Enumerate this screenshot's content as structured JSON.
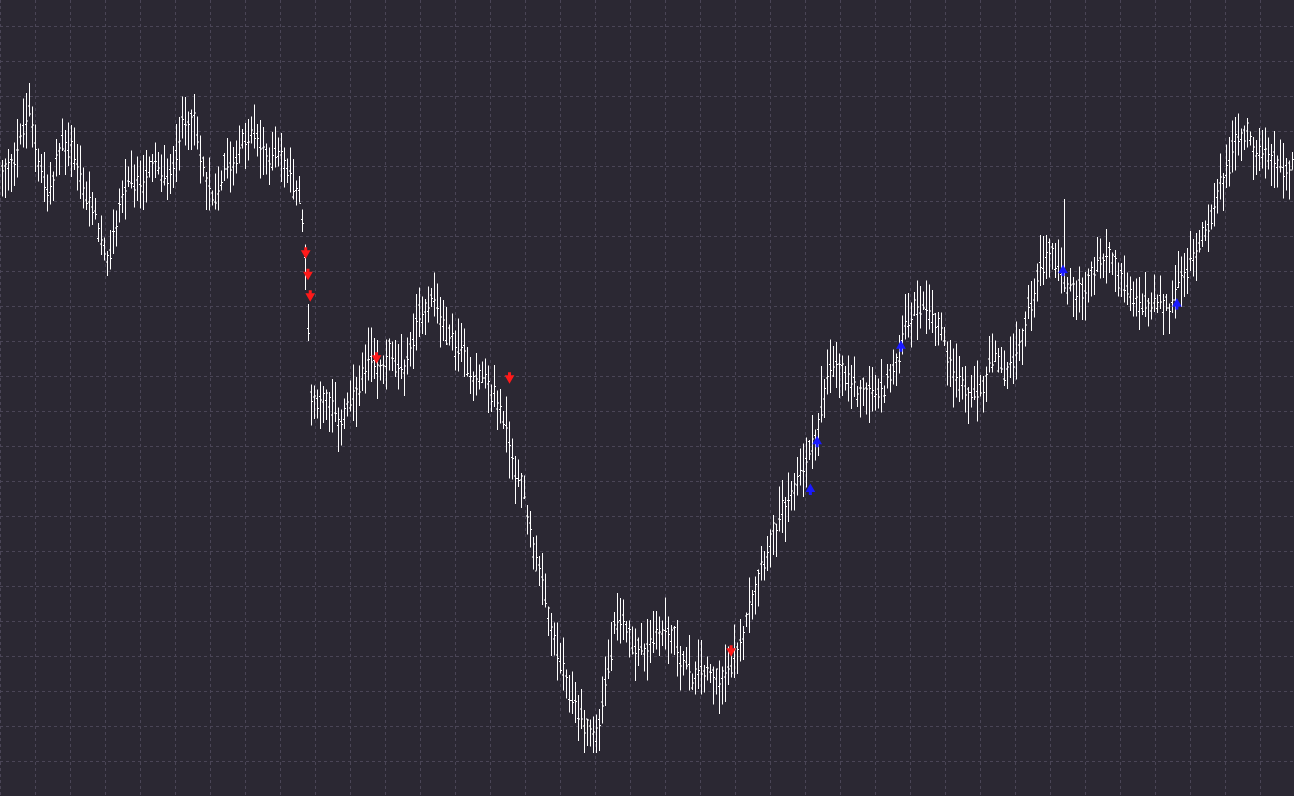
{
  "chart_data": {
    "type": "ohlc",
    "title": "",
    "xlabel": "",
    "ylabel": "",
    "grid": true,
    "background_color": "#2b2833",
    "grid_color": "#4a4556",
    "bar_color": "#ffffff",
    "sell_signal_color": "#ff1a1a",
    "buy_signal_color": "#1a1aff",
    "x_range": [
      0,
      400
    ],
    "y_range": [
      0,
      100
    ],
    "price_path": [
      [
        0,
        77.5
      ],
      [
        4,
        80
      ],
      [
        9,
        86
      ],
      [
        12,
        80
      ],
      [
        15,
        75
      ],
      [
        19,
        82
      ],
      [
        22,
        81.5
      ],
      [
        26,
        76
      ],
      [
        30,
        72
      ],
      [
        33,
        66
      ],
      [
        36,
        73
      ],
      [
        39,
        77
      ],
      [
        42,
        76
      ],
      [
        45,
        78
      ],
      [
        49,
        79
      ],
      [
        52,
        77
      ],
      [
        56,
        84
      ],
      [
        59,
        86
      ],
      [
        62,
        80
      ],
      [
        66,
        74
      ],
      [
        69,
        79
      ],
      [
        72,
        80
      ],
      [
        75,
        82
      ],
      [
        79,
        83
      ],
      [
        82,
        80
      ],
      [
        86,
        81
      ],
      [
        89,
        78
      ],
      [
        92,
        76
      ],
      [
        94,
        71
      ],
      [
        96,
        50
      ],
      [
        99,
        50
      ],
      [
        102,
        49
      ],
      [
        105,
        47
      ],
      [
        108,
        49
      ],
      [
        111,
        51
      ],
      [
        114,
        55
      ],
      [
        117,
        53
      ],
      [
        120,
        56
      ],
      [
        123,
        53
      ],
      [
        126,
        55
      ],
      [
        130,
        61
      ],
      [
        134,
        63
      ],
      [
        137,
        59
      ],
      [
        140,
        57
      ],
      [
        143,
        56
      ],
      [
        146,
        53
      ],
      [
        150,
        52
      ],
      [
        153,
        50
      ],
      [
        156,
        47
      ],
      [
        159,
        41
      ],
      [
        162,
        38
      ],
      [
        165,
        31
      ],
      [
        168,
        25
      ],
      [
        172,
        18
      ],
      [
        175,
        14
      ],
      [
        178,
        11
      ],
      [
        181,
        9
      ],
      [
        184,
        7
      ],
      [
        187,
        14
      ],
      [
        190,
        21
      ],
      [
        193,
        22
      ],
      [
        196,
        19
      ],
      [
        199,
        18
      ],
      [
        202,
        20
      ],
      [
        205,
        21
      ],
      [
        208,
        20
      ],
      [
        211,
        17
      ],
      [
        214,
        15
      ],
      [
        217,
        16
      ],
      [
        220,
        15
      ],
      [
        223,
        15
      ],
      [
        226,
        16
      ],
      [
        229,
        20
      ],
      [
        232,
        25
      ],
      [
        235,
        29
      ],
      [
        238,
        32
      ],
      [
        241,
        35
      ],
      [
        244,
        37
      ],
      [
        247,
        41
      ],
      [
        250,
        43
      ],
      [
        253,
        47
      ],
      [
        256,
        53
      ],
      [
        259,
        54
      ],
      [
        262,
        52
      ],
      [
        265,
        51
      ],
      [
        268,
        51
      ],
      [
        271,
        50
      ],
      [
        274,
        52
      ],
      [
        277,
        54
      ],
      [
        280,
        60
      ],
      [
        283,
        61
      ],
      [
        286,
        62
      ],
      [
        289,
        60
      ],
      [
        292,
        57
      ],
      [
        295,
        53
      ],
      [
        298,
        51
      ],
      [
        301,
        50
      ],
      [
        304,
        52
      ],
      [
        307,
        55
      ],
      [
        310,
        53
      ],
      [
        313,
        54
      ],
      [
        316,
        58
      ],
      [
        319,
        63
      ],
      [
        322,
        67
      ],
      [
        325,
        69
      ],
      [
        328,
        65
      ],
      [
        331,
        64
      ],
      [
        334,
        63
      ],
      [
        337,
        65
      ],
      [
        340,
        67
      ],
      [
        343,
        68
      ],
      [
        346,
        65
      ],
      [
        349,
        63
      ],
      [
        352,
        62
      ],
      [
        355,
        61
      ],
      [
        358,
        62
      ],
      [
        361,
        61
      ],
      [
        364,
        64
      ],
      [
        367,
        66
      ],
      [
        370,
        69
      ],
      [
        373,
        72
      ],
      [
        376,
        75
      ],
      [
        379,
        79
      ],
      [
        382,
        82
      ],
      [
        385,
        84
      ],
      [
        388,
        81
      ],
      [
        391,
        80
      ],
      [
        394,
        80
      ],
      [
        397,
        79
      ],
      [
        400,
        79
      ]
    ],
    "spikes": [
      {
        "x": 329,
        "high": 75
      },
      {
        "x": 254,
        "high": 54
      }
    ],
    "signals": [
      {
        "type": "sell",
        "x": 94.5,
        "y": 68
      },
      {
        "type": "sell",
        "x": 95.2,
        "y": 65.3
      },
      {
        "type": "sell",
        "x": 95.9,
        "y": 62.6
      },
      {
        "type": "sell",
        "x": 116.4,
        "y": 54.8
      },
      {
        "type": "sell",
        "x": 157.5,
        "y": 52.3
      },
      {
        "type": "sell",
        "x": 226,
        "y": 18
      },
      {
        "type": "buy",
        "x": 250.5,
        "y": 38.5
      },
      {
        "type": "buy",
        "x": 252.6,
        "y": 44.5
      },
      {
        "type": "buy",
        "x": 278.5,
        "y": 56.5
      },
      {
        "type": "buy",
        "x": 328.6,
        "y": 66
      },
      {
        "type": "buy",
        "x": 363.8,
        "y": 61.8
      }
    ]
  }
}
